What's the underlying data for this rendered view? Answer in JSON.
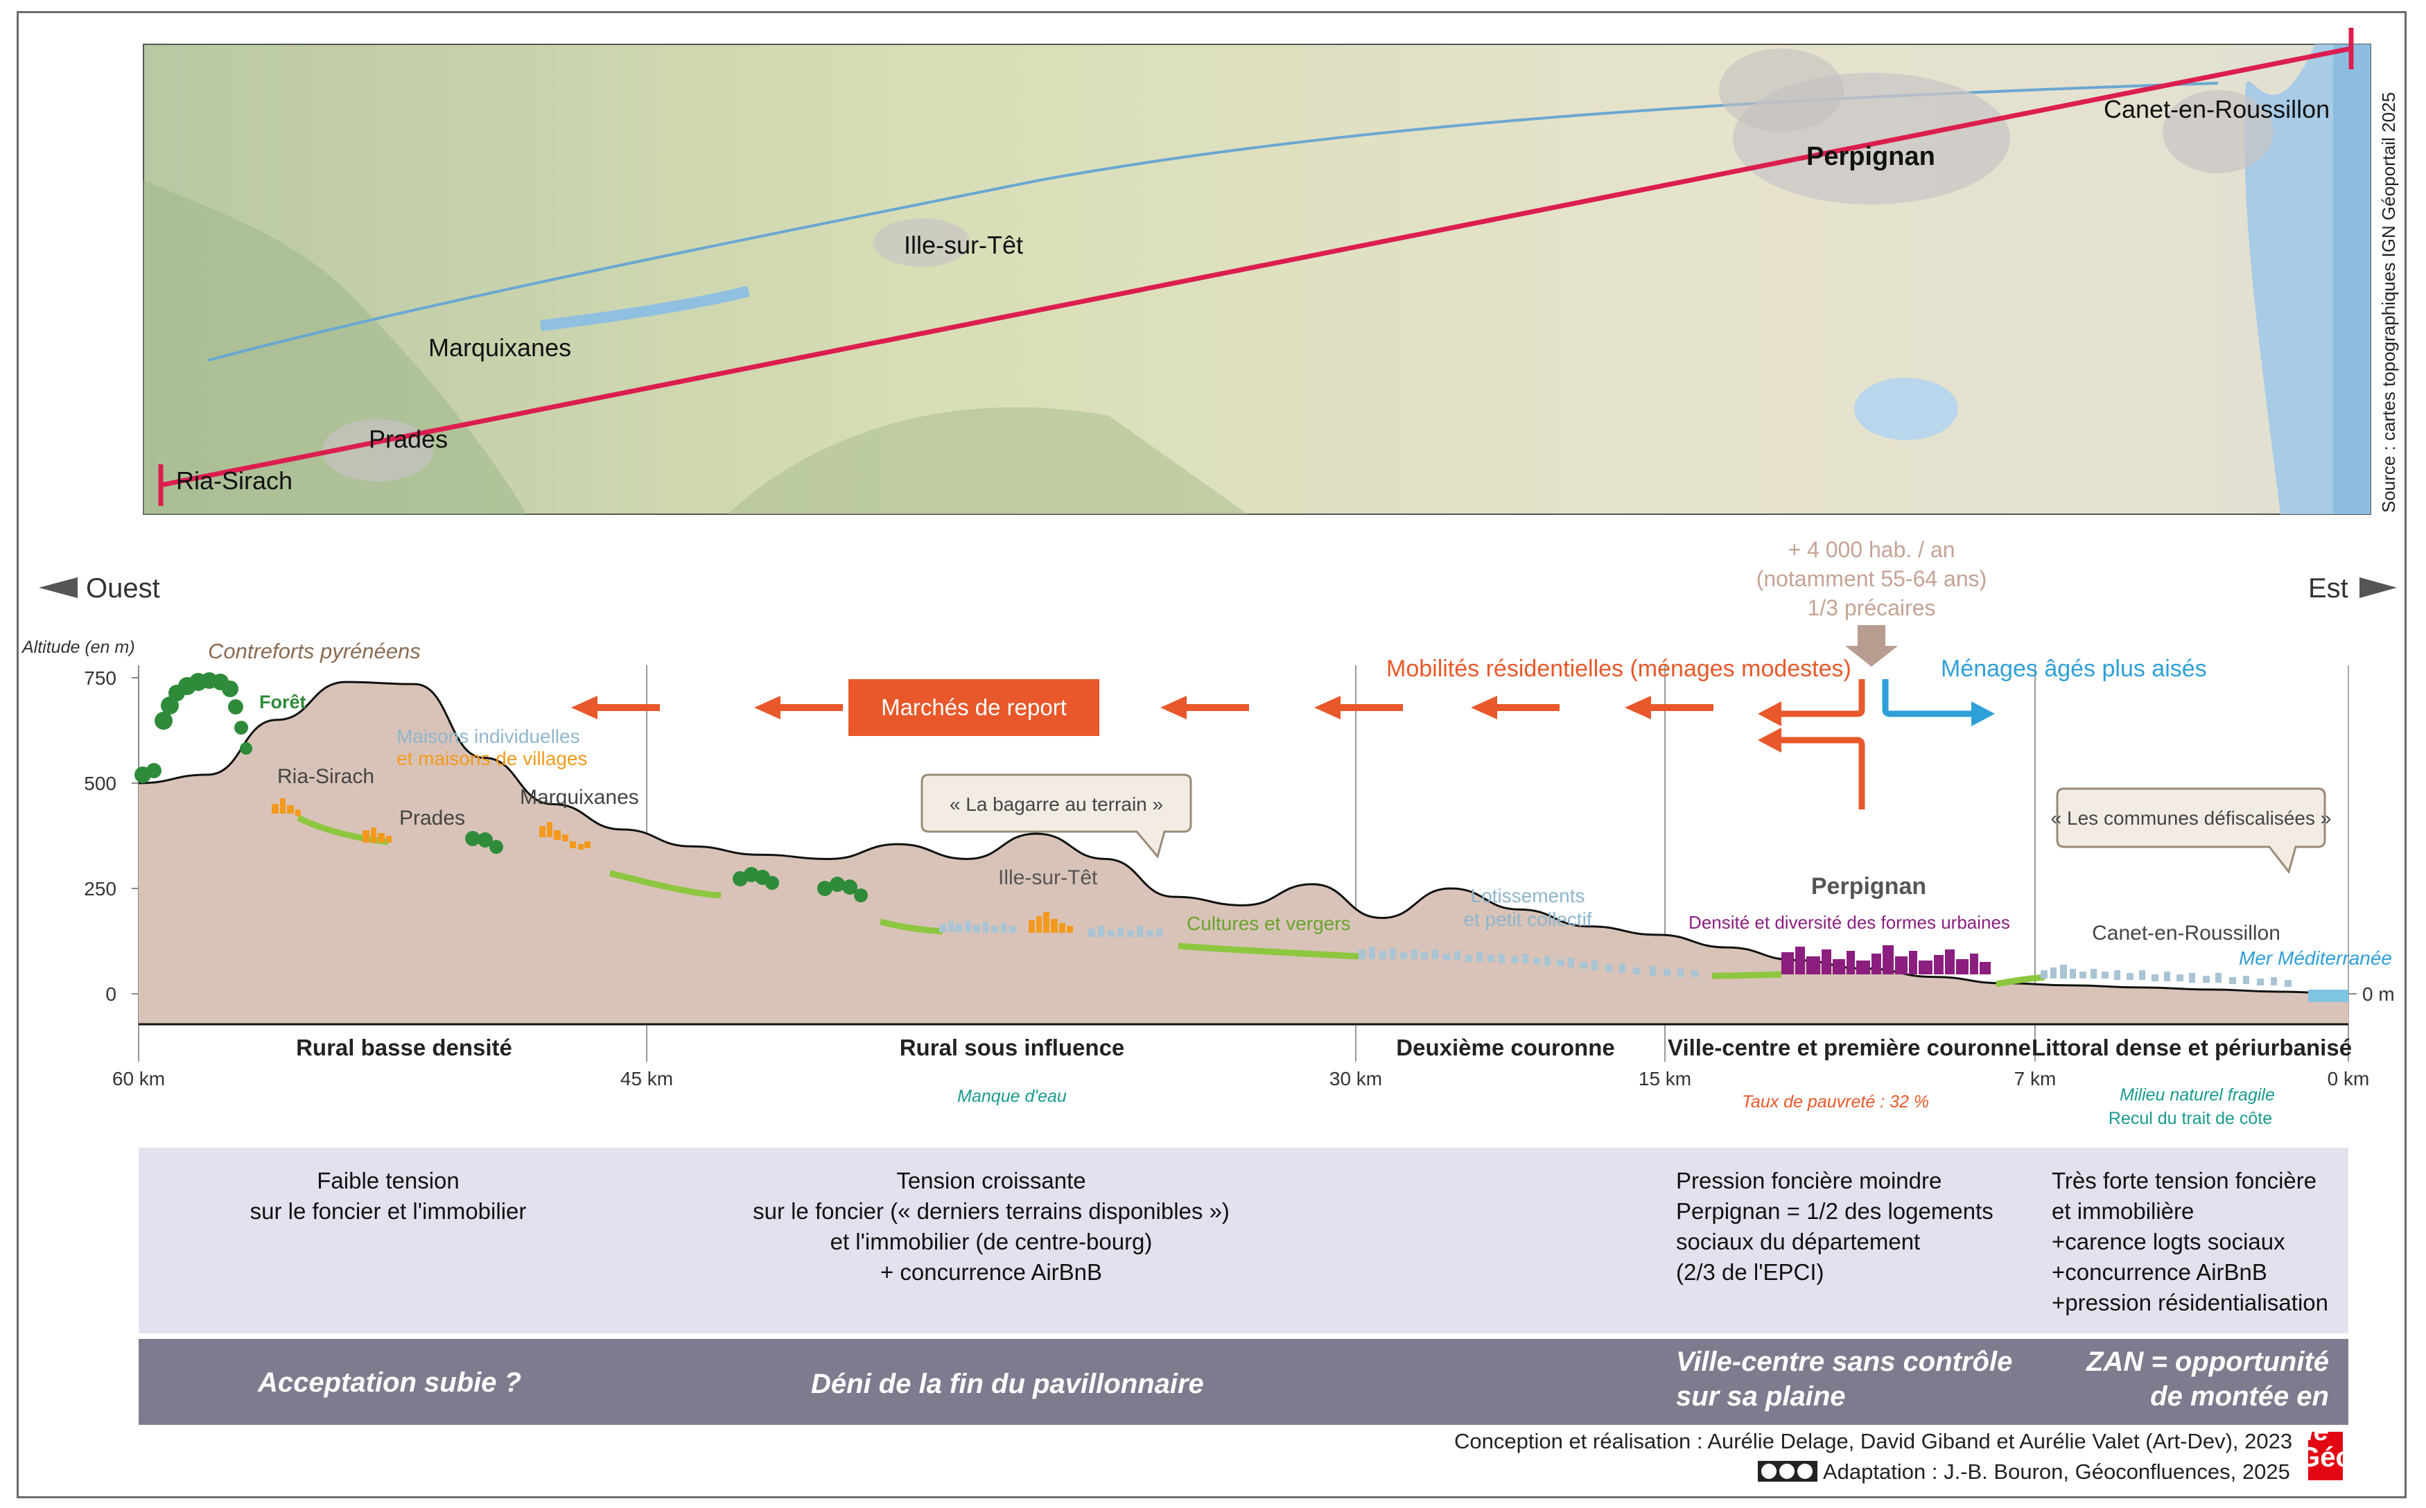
{
  "map": {
    "towns": [
      "Ria-Sirach",
      "Prades",
      "Marquixanes",
      "Ille-sur-Têt",
      "Perpignan",
      "Canet-en-Roussillon"
    ],
    "source": "Source : cartes topographiques IGN Géoportail 2025"
  },
  "profile": {
    "west_label": "Ouest",
    "east_label": "Est",
    "ylabel": "Altitude (en m)",
    "yticks": [
      "750",
      "500",
      "250",
      "0"
    ],
    "xticks": [
      "60 km",
      "45 km",
      "30 km",
      "15 km",
      "7 km",
      "0 km"
    ],
    "sea_level": "0 m",
    "altitude_values_m": [
      500,
      520,
      650,
      740,
      735,
      560,
      450,
      390,
      350,
      330,
      320,
      355,
      320,
      380,
      320,
      230,
      210,
      260,
      180,
      250,
      200,
      160,
      140,
      110,
      80,
      60,
      40,
      25,
      20,
      15,
      10,
      5,
      0
    ],
    "annotations": {
      "contreforts": "Contreforts pyrénéens",
      "foret": "Forêt",
      "maisons_1": "Maisons individuelles",
      "maisons_2": "et maisons de villages",
      "ria": "Ria-Sirach",
      "prades": "Prades",
      "marquixanes": "Marquixanes",
      "ille": "Ille-sur-Têt",
      "cultures": "Cultures et vergers",
      "lotissements_1": "Lotissements",
      "lotissements_2": "et petit collectif",
      "perpignan": "Perpignan",
      "densite": "Densité et diversité des formes urbaines",
      "canet": "Canet-en-Roussillon",
      "mer": "Mer Méditerranée",
      "bagarre": "« La bagarre au terrain »",
      "defisc": "« Les communes défiscalisées »",
      "migration_1": "+ 4 000 hab. / an",
      "migration_2": "(notamment 55-64 ans)",
      "migration_3": "1/3 précaires",
      "mobilites": "Mobilités résidentielles (ménages modestes)",
      "menages_ages": "Ménages âgés plus aisés",
      "marches": "Marchés de report"
    },
    "zones": [
      "Rural basse densité",
      "Rural sous influence",
      "Deuxième couronne",
      "Ville-centre et première couronne",
      "Littoral dense et périurbanisé"
    ],
    "zone_notes": {
      "eau": "Manque d'eau",
      "pauvrete": "Taux de pauvreté : 32 %",
      "milieu": "Milieu naturel fragile",
      "recul": "Recul du trait de côte"
    }
  },
  "tension": {
    "col1": [
      "Faible tension",
      "sur le foncier et l'immobilier"
    ],
    "col2": [
      "Tension croissante",
      "sur le foncier (« derniers terrains disponibles »)",
      "et l'immobilier (de centre-bourg)",
      "+ concurrence AirBnB"
    ],
    "col3": [
      "Pression foncière moindre",
      "Perpignan = 1/2 des logements",
      "sociaux du département",
      "(2/3 de l'EPCI)"
    ],
    "col4": [
      "Très forte tension foncière",
      "et immobilière",
      "+carence logts sociaux",
      "+concurrence AirBnB",
      "+pression résidentialisation"
    ]
  },
  "conclusions": {
    "c1": "Acceptation subie ?",
    "c2": "Déni de la fin du pavillonnaire",
    "c3_1": "Ville-centre sans contrôle",
    "c3_2": "sur sa plaine",
    "c4_1": "ZAN = opportunité",
    "c4_2": "de montée en gamme"
  },
  "credits": {
    "line1": "Conception et réalisation : Aurélie Delage, David Giband et Aurélie Valet (Art-Dev), 2023",
    "line2": "Adaptation : J.-B. Bouron, Géoconfluences, 2025",
    "logo": "Géo"
  },
  "colors": {
    "profile_fill": "#d9c3b8",
    "forest": "#2e8b3a",
    "crops": "#8dc63f",
    "houses": "#f39a1e",
    "buildings": "#a9c4d4",
    "urban": "#8b1e7e",
    "orange_arrow": "#e8582a",
    "blue_arrow": "#2e9fd8",
    "tension_band": "#e2e1ee",
    "conclusion_band": "#7d7c8e",
    "route": "#dc1e4f"
  }
}
